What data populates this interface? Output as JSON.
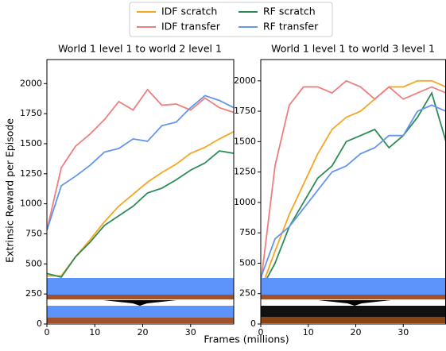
{
  "xlabel": "Frames (millions)",
  "ylabel": "Extrinsic Reward per Episode",
  "chart_data": [
    {
      "type": "line",
      "title": "World 1 level 1 to world 2 level 1",
      "x": [
        0,
        3,
        6,
        9,
        12,
        15,
        18,
        21,
        24,
        27,
        30,
        33,
        36,
        39
      ],
      "series": [
        {
          "name": "IDF scratch",
          "color": "#f5a623",
          "values": [
            400,
            400,
            560,
            700,
            850,
            980,
            1080,
            1180,
            1260,
            1330,
            1420,
            1470,
            1540,
            1600
          ]
        },
        {
          "name": "IDF transfer",
          "color": "#ee7f7f",
          "values": [
            780,
            1300,
            1480,
            1580,
            1700,
            1850,
            1780,
            1950,
            1820,
            1830,
            1780,
            1880,
            1800,
            1760
          ]
        },
        {
          "name": "RF scratch",
          "color": "#2e8b57",
          "values": [
            420,
            390,
            560,
            680,
            820,
            900,
            980,
            1090,
            1130,
            1200,
            1280,
            1340,
            1440,
            1420
          ]
        },
        {
          "name": "RF transfer",
          "color": "#6495ed",
          "values": [
            780,
            1150,
            1230,
            1320,
            1430,
            1460,
            1540,
            1520,
            1650,
            1680,
            1800,
            1900,
            1860,
            1800
          ]
        }
      ],
      "xlim": [
        0,
        39
      ],
      "ylim": [
        0,
        2200
      ],
      "xticks": [
        0,
        10,
        20,
        30
      ],
      "yticks": [
        0,
        250,
        500,
        750,
        1000,
        1250,
        1500,
        1750,
        2000
      ]
    },
    {
      "type": "line",
      "title": "World 1 level 1 to world 3 level 1",
      "x": [
        0,
        3,
        6,
        9,
        12,
        15,
        18,
        21,
        24,
        27,
        30,
        33,
        36,
        39
      ],
      "series": [
        {
          "name": "IDF scratch",
          "color": "#f5a623",
          "values": [
            280,
            600,
            900,
            1150,
            1400,
            1600,
            1700,
            1750,
            1850,
            1950,
            1950,
            2000,
            2000,
            1950
          ]
        },
        {
          "name": "IDF transfer",
          "color": "#ee7f7f",
          "values": [
            330,
            1300,
            1800,
            1950,
            1950,
            1900,
            2000,
            1950,
            1850,
            1950,
            1850,
            1900,
            1950,
            1900
          ]
        },
        {
          "name": "RF scratch",
          "color": "#2e8b57",
          "values": [
            280,
            500,
            800,
            1000,
            1200,
            1300,
            1500,
            1550,
            1600,
            1450,
            1550,
            1700,
            1900,
            1500
          ]
        },
        {
          "name": "RF transfer",
          "color": "#6495ed",
          "values": [
            380,
            700,
            800,
            950,
            1100,
            1250,
            1300,
            1400,
            1450,
            1550,
            1550,
            1750,
            1800,
            1750
          ]
        }
      ],
      "xlim": [
        0,
        39
      ],
      "ylim": [
        0,
        2175
      ],
      "xticks": [
        0,
        10,
        20,
        30
      ],
      "yticks": [
        0,
        250,
        500,
        750,
        1000,
        1250,
        1500,
        1750,
        2000
      ]
    }
  ]
}
